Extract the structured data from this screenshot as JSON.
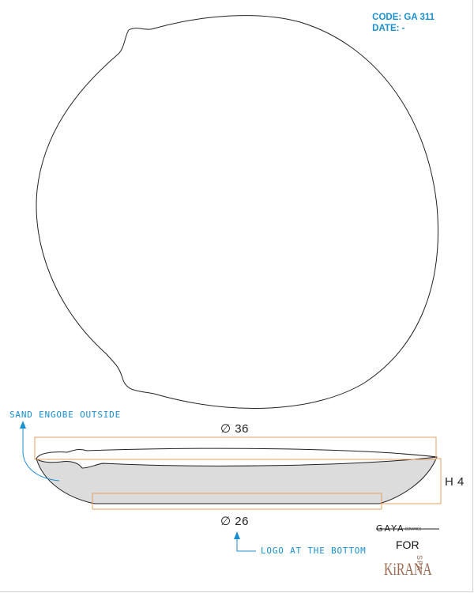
{
  "header": {
    "code": "CODE: GA 311",
    "date": "DATE: -"
  },
  "dimensions": {
    "top_diameter": "∅ 36",
    "bottom_diameter": "∅ 26",
    "height": "H 4"
  },
  "callouts": {
    "finish": "SAND ENGOBE OUTSIDE",
    "logo": "LOGO AT THE BOTTOM"
  },
  "branding": {
    "maker": "GAYA",
    "maker_suffix": "CERAMICS",
    "for_label": "FOR",
    "client": "KiRANA",
    "client_suffix": "SPA"
  },
  "colors": {
    "accent": "#1a8fd0",
    "dimension_line": "#e0a060",
    "engobe_fill": "#dcdcdc",
    "outline": "#222222"
  }
}
